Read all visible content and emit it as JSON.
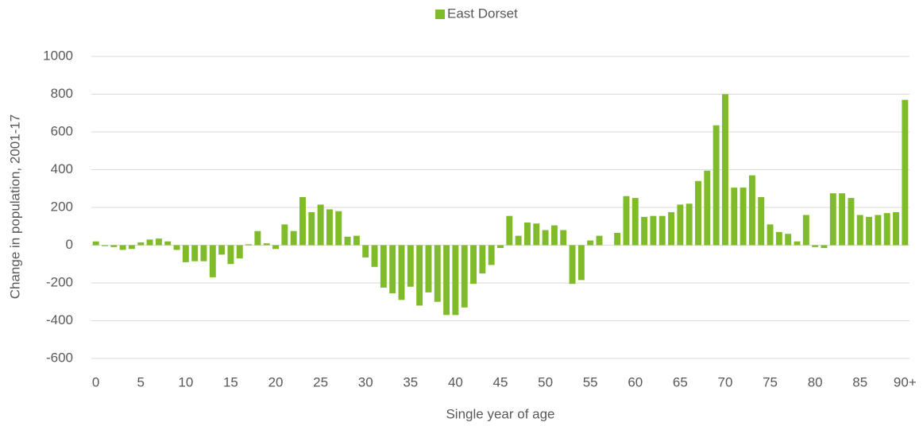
{
  "chart_data": {
    "type": "bar",
    "x_label": "Single year of age",
    "y_label": "Change in population, 2001-17",
    "categories": [
      "0",
      null,
      null,
      null,
      null,
      "5",
      null,
      null,
      null,
      null,
      "10",
      null,
      null,
      null,
      null,
      "15",
      null,
      null,
      null,
      null,
      "20",
      null,
      null,
      null,
      null,
      "25",
      null,
      null,
      null,
      null,
      "30",
      null,
      null,
      null,
      null,
      "35",
      null,
      null,
      null,
      null,
      "40",
      null,
      null,
      null,
      null,
      "45",
      null,
      null,
      null,
      null,
      "50",
      null,
      null,
      null,
      null,
      "55",
      null,
      null,
      null,
      null,
      "60",
      null,
      null,
      null,
      null,
      "65",
      null,
      null,
      null,
      null,
      "70",
      null,
      null,
      null,
      null,
      "75",
      null,
      null,
      null,
      null,
      "80",
      null,
      null,
      null,
      null,
      "85",
      null,
      null,
      null,
      null,
      "90+"
    ],
    "series": [
      {
        "name": "East Dorset",
        "color": "#80bc2a",
        "values": [
          20,
          -5,
          -10,
          -25,
          -20,
          15,
          30,
          35,
          20,
          -25,
          -90,
          -85,
          -85,
          -170,
          -50,
          -100,
          -70,
          5,
          75,
          10,
          -20,
          110,
          75,
          255,
          175,
          215,
          190,
          180,
          45,
          50,
          -65,
          -115,
          -225,
          -255,
          -290,
          -220,
          -320,
          -250,
          -300,
          -370,
          -370,
          -330,
          -205,
          -150,
          -105,
          -15,
          155,
          50,
          120,
          115,
          80,
          105,
          80,
          -205,
          -185,
          25,
          50,
          0,
          65,
          260,
          250,
          150,
          155,
          155,
          175,
          215,
          220,
          340,
          395,
          635,
          800,
          305,
          305,
          370,
          255,
          110,
          70,
          60,
          20,
          160,
          -10,
          -15,
          275,
          275,
          250,
          160,
          150,
          160,
          170,
          175,
          770
        ]
      }
    ],
    "ylim": [
      -600,
      1000
    ],
    "yticks": [
      -600,
      -400,
      -200,
      0,
      200,
      400,
      600,
      800,
      1000
    ],
    "grid": true,
    "legend": "top"
  }
}
